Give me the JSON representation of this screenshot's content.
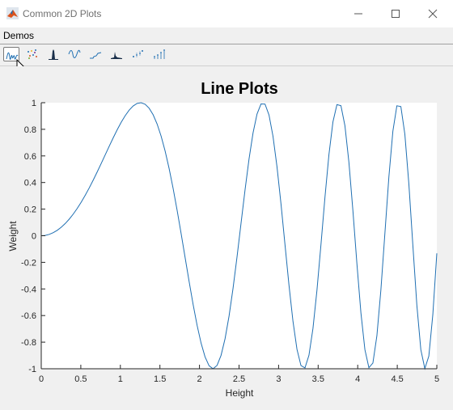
{
  "window": {
    "title": "Common 2D Plots"
  },
  "menu": {
    "items": [
      {
        "label": "Demos"
      }
    ]
  },
  "toolbar": {
    "tools": [
      {
        "icon": "line-plot-icon",
        "selected": true
      },
      {
        "icon": "scatter-plot-icon",
        "selected": false
      },
      {
        "icon": "histogram-icon",
        "selected": false
      },
      {
        "icon": "sine-wave-icon",
        "selected": false
      },
      {
        "icon": "stairs-plot-icon",
        "selected": false
      },
      {
        "icon": "area-plot-icon",
        "selected": false
      },
      {
        "icon": "errorbar-plot-icon",
        "selected": false
      },
      {
        "icon": "stem-plot-icon",
        "selected": false
      }
    ]
  },
  "colors": {
    "line": "#1f6fb2",
    "axes_bg": "#ffffff",
    "figure_bg": "#f0f0f0"
  },
  "chart_data": {
    "type": "line",
    "title": "Line Plots",
    "xlabel": "Height",
    "ylabel": "Weight",
    "xlim": [
      0,
      5
    ],
    "ylim": [
      -1,
      1
    ],
    "xticks": [
      0,
      0.5,
      1,
      1.5,
      2,
      2.5,
      3,
      3.5,
      4,
      4.5,
      5
    ],
    "yticks": [
      -1,
      -0.8,
      -0.6,
      -0.4,
      -0.2,
      0,
      0.2,
      0.4,
      0.6,
      0.8,
      1
    ],
    "xtick_labels": [
      "0",
      "0.5",
      "1",
      "1.5",
      "2",
      "2.5",
      "3",
      "3.5",
      "4",
      "4.5",
      "5"
    ],
    "ytick_labels": [
      "-1",
      "-0.8",
      "-0.6",
      "-0.4",
      "-0.2",
      "0",
      "0.2",
      "0.4",
      "0.6",
      "0.8",
      "1"
    ],
    "grid": false,
    "series": [
      {
        "function": "y = sin(x^2)",
        "x_start": 0,
        "x_end": 5,
        "samples": 100
      }
    ]
  }
}
